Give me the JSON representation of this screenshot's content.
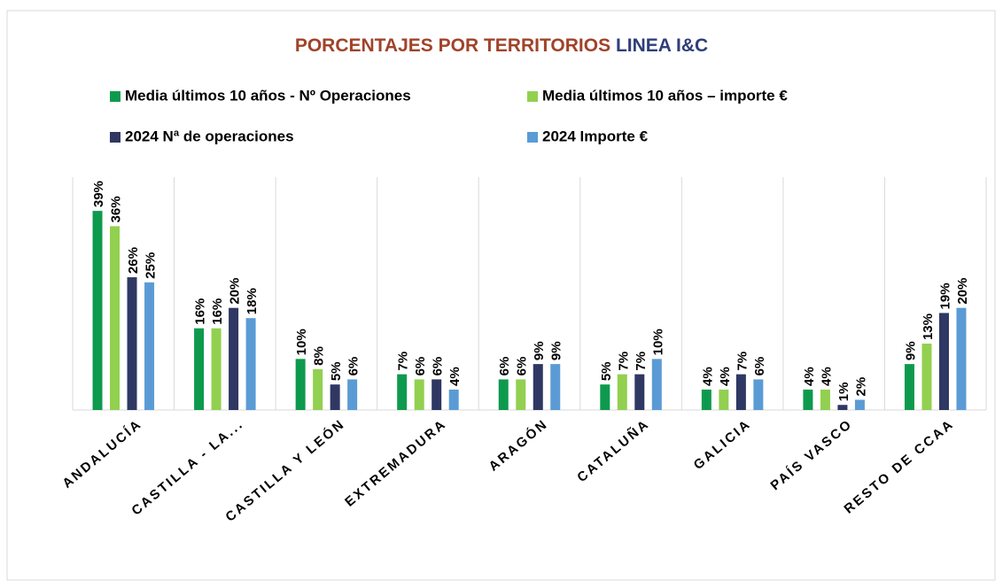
{
  "chart_data": {
    "type": "bar",
    "title_parts": [
      {
        "text": "PORCENTAJES POR TERRITORIOS",
        "color": "#a0432a"
      },
      {
        "text": "LINEA I&C",
        "color": "#2f3e7a"
      }
    ],
    "categories": [
      "ANDALUCÍA",
      "CASTILLA - LA...",
      "CASTILLA Y LEÓN",
      "EXTREMADURA",
      "ARAGÓN",
      "CATALUÑA",
      "GALICIA",
      "PAÍS VASCO",
      "RESTO DE CCAA"
    ],
    "series": [
      {
        "name": "Media últimos 10 años - Nº Operaciones",
        "color": "#0e9a4e",
        "values": [
          39,
          16,
          10,
          7,
          6,
          5,
          4,
          4,
          9
        ],
        "value_labels": [
          "39%",
          "16%",
          "10%",
          "7%",
          "6%",
          "5%",
          "4%",
          "4%",
          "9%"
        ]
      },
      {
        "name": "Media últimos 10 años – importe €",
        "color": "#92d050",
        "values": [
          36,
          16,
          8,
          6,
          6,
          7,
          4,
          4,
          13
        ],
        "value_labels": [
          "36%",
          "16%",
          "8%",
          "6%",
          "6%",
          "7%",
          "4%",
          "4%",
          "13%"
        ]
      },
      {
        "name": "2024 Nª de operaciones",
        "color": "#2f3763",
        "values": [
          26,
          20,
          5,
          6,
          9,
          7,
          7,
          1,
          19
        ],
        "value_labels": [
          "26%",
          "20%",
          "5%",
          "6%",
          "9%",
          "7%",
          "7%",
          "1%",
          "19%"
        ]
      },
      {
        "name": "2024 Importe €",
        "color": "#5b9bd5",
        "values": [
          25,
          18,
          6,
          4,
          9,
          10,
          6,
          2,
          20
        ],
        "value_labels": [
          "25%",
          "18%",
          "6%",
          "4%",
          "9%",
          "10%",
          "6%",
          "2%",
          "20%"
        ]
      }
    ],
    "ylim": [
      0,
      47
    ]
  }
}
